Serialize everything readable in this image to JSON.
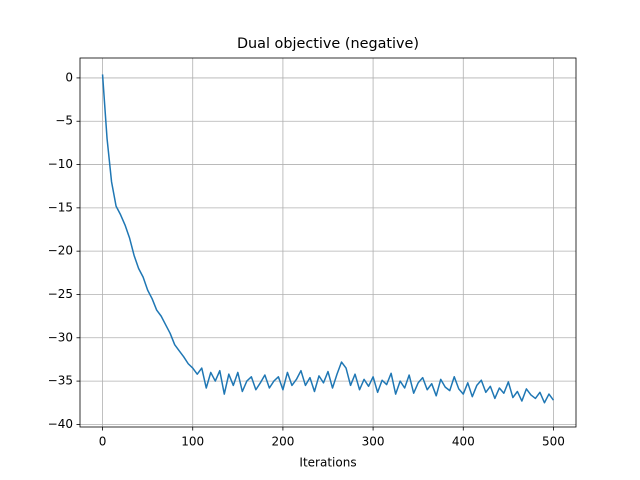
{
  "chart_data": {
    "type": "line",
    "title": "Dual objective (negative)",
    "xlabel": "Iterations",
    "x": [
      0,
      5,
      10,
      15,
      20,
      25,
      30,
      35,
      40,
      45,
      50,
      55,
      60,
      65,
      70,
      75,
      80,
      85,
      90,
      95,
      100,
      105,
      110,
      115,
      120,
      125,
      130,
      135,
      140,
      145,
      150,
      155,
      160,
      165,
      170,
      175,
      180,
      185,
      190,
      195,
      200,
      205,
      210,
      215,
      220,
      225,
      230,
      235,
      240,
      245,
      250,
      255,
      260,
      265,
      270,
      275,
      280,
      285,
      290,
      295,
      300,
      305,
      310,
      315,
      320,
      325,
      330,
      335,
      340,
      345,
      350,
      355,
      360,
      365,
      370,
      375,
      380,
      385,
      390,
      395,
      400,
      405,
      410,
      415,
      420,
      425,
      430,
      435,
      440,
      445,
      450,
      455,
      460,
      465,
      470,
      475,
      480,
      485,
      490,
      495,
      500
    ],
    "values": [
      0.4,
      -7,
      -12,
      -14.8,
      -15.8,
      -17,
      -18.5,
      -20.5,
      -22,
      -23,
      -24.5,
      -25.5,
      -26.8,
      -27.5,
      -28.5,
      -29.5,
      -30.8,
      -31.5,
      -32.2,
      -33,
      -33.5,
      -34.2,
      -33.5,
      -35.8,
      -34,
      -35,
      -33.8,
      -36.5,
      -34.2,
      -35.5,
      -34,
      -36.2,
      -35,
      -34.5,
      -36,
      -35.2,
      -34.3,
      -35.8,
      -35,
      -34.5,
      -36,
      -34,
      -35.5,
      -34.8,
      -33.8,
      -35.5,
      -34.6,
      -36.2,
      -34.4,
      -35.2,
      -33.9,
      -35.8,
      -34.2,
      -32.8,
      -33.5,
      -35.5,
      -34.2,
      -36,
      -34.8,
      -35.6,
      -34.5,
      -36.3,
      -34.9,
      -35.4,
      -34.1,
      -36.5,
      -35,
      -35.8,
      -34.3,
      -36.4,
      -35.2,
      -34.6,
      -36,
      -35.3,
      -36.7,
      -34.8,
      -35.7,
      -36.1,
      -34.5,
      -35.9,
      -36.5,
      -35.2,
      -36.8,
      -35.5,
      -34.9,
      -36.3,
      -35.6,
      -37,
      -35.8,
      -36.4,
      -35.1,
      -36.9,
      -36.2,
      -37.3,
      -35.9,
      -36.6,
      -37,
      -36.3,
      -37.5,
      -36.5,
      -37.2
    ],
    "color": "#1f77b4",
    "xlim": [
      -25,
      525
    ],
    "xticks": [
      0,
      100,
      200,
      300,
      400,
      500
    ],
    "ylim": [
      -40.3,
      2.3
    ],
    "yticks": [
      0,
      {
        "value": -5,
        "label": "−5"
      },
      {
        "value": -10,
        "label": "−10"
      },
      {
        "value": -15,
        "label": "−15"
      },
      {
        "value": -20,
        "label": "−20"
      },
      {
        "value": -25,
        "label": "−25"
      },
      {
        "value": -30,
        "label": "−30"
      },
      {
        "value": -35,
        "label": "−35"
      },
      {
        "value": -40,
        "label": "−40"
      }
    ],
    "grid": true
  }
}
